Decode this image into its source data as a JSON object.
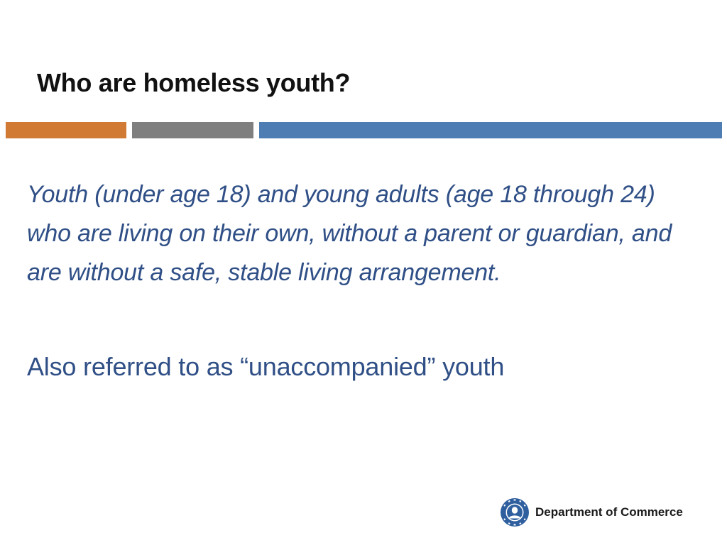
{
  "slide": {
    "title": "Who are homeless youth?",
    "definition": "Youth (under age 18) and young adults (age 18 through 24) who are living on their own, without a parent or guardian, and are without a safe, stable living arrangement.",
    "alt_term": "Also referred to as “unaccompanied” youth"
  },
  "divider": {
    "colors": [
      "#d07a34",
      "#7f7f7f",
      "#4d7db3"
    ]
  },
  "footer": {
    "seal_icon": "washington-state-seal-icon",
    "seal_text": "STATE OF WASHINGTON",
    "department": "Department of Commerce"
  },
  "colors": {
    "body_text": "#2f4f86",
    "title_text": "#111111",
    "seal": "#2f5f9e"
  }
}
